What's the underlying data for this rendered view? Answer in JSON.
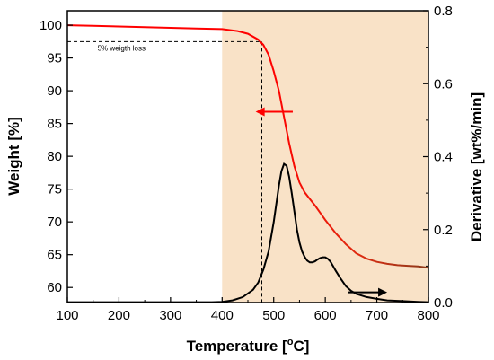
{
  "chart_data": {
    "type": "line",
    "xlabel": "Temperature [°C]",
    "xlabel_base": "Temperature [",
    "xlabel_sup": "o",
    "xlabel_tail": "C]",
    "ylabel_left": "Weight [%]",
    "ylabel_right": "Derivative [wt%/min]",
    "xlim": [
      100,
      800
    ],
    "ylim_left": [
      57.7,
      102.2
    ],
    "ylim_right": [
      0,
      0.8
    ],
    "x_ticks": [
      100,
      200,
      300,
      400,
      500,
      600,
      700,
      800
    ],
    "y_left_ticks": [
      60,
      65,
      70,
      75,
      80,
      85,
      90,
      95,
      100
    ],
    "y_right_ticks": [
      "0.0",
      "0.2",
      "0.4",
      "0.6",
      "0.8"
    ],
    "shaded_region": {
      "x_start": 400,
      "x_end": 800,
      "color": "#f9e2c7"
    },
    "annotation": {
      "text": "5% weigth loss",
      "x": 477,
      "y": 97.5
    },
    "arrows": [
      {
        "series": "weight",
        "direction": "left",
        "x_from": 537,
        "x_to": 465,
        "y_left": 86.8,
        "color": "#ff0000"
      },
      {
        "series": "derivative",
        "direction": "right",
        "x_from": 645,
        "x_to": 720,
        "y_right": 0.028,
        "color": "#000000"
      }
    ],
    "series": [
      {
        "axis": "left",
        "color": "#ff0000",
        "color_end": "#8b3a1a",
        "x": [
          100,
          150,
          200,
          250,
          300,
          350,
          400,
          430,
          450,
          470,
          480,
          490,
          500,
          510,
          520,
          530,
          540,
          550,
          560,
          570,
          580,
          590,
          600,
          620,
          640,
          660,
          680,
          700,
          720,
          740,
          760,
          780,
          800
        ],
        "values": [
          100.0,
          99.9,
          99.8,
          99.7,
          99.6,
          99.5,
          99.4,
          99.1,
          98.7,
          97.8,
          97.0,
          95.5,
          93.0,
          90.0,
          86.0,
          82.0,
          78.5,
          76.0,
          74.5,
          73.5,
          72.5,
          71.4,
          70.3,
          68.3,
          66.6,
          65.2,
          64.4,
          63.9,
          63.6,
          63.4,
          63.3,
          63.2,
          63.0
        ]
      },
      {
        "axis": "right",
        "color": "#000000",
        "x": [
          100,
          200,
          300,
          380,
          400,
          420,
          440,
          460,
          470,
          480,
          490,
          500,
          505,
          510,
          515,
          520,
          525,
          530,
          535,
          540,
          545,
          550,
          555,
          560,
          565,
          570,
          575,
          580,
          585,
          590,
          595,
          600,
          605,
          610,
          615,
          620,
          630,
          640,
          650,
          660,
          680,
          700,
          720,
          750,
          780,
          800
        ],
        "values": [
          0.001,
          0.001,
          0.001,
          0.001,
          0.002,
          0.006,
          0.015,
          0.035,
          0.055,
          0.09,
          0.14,
          0.22,
          0.27,
          0.32,
          0.36,
          0.38,
          0.375,
          0.345,
          0.3,
          0.25,
          0.2,
          0.165,
          0.14,
          0.125,
          0.115,
          0.11,
          0.11,
          0.113,
          0.118,
          0.122,
          0.124,
          0.124,
          0.12,
          0.112,
          0.1,
          0.088,
          0.065,
          0.045,
          0.032,
          0.024,
          0.015,
          0.01,
          0.006,
          0.004,
          0.002,
          0.001
        ]
      }
    ]
  }
}
